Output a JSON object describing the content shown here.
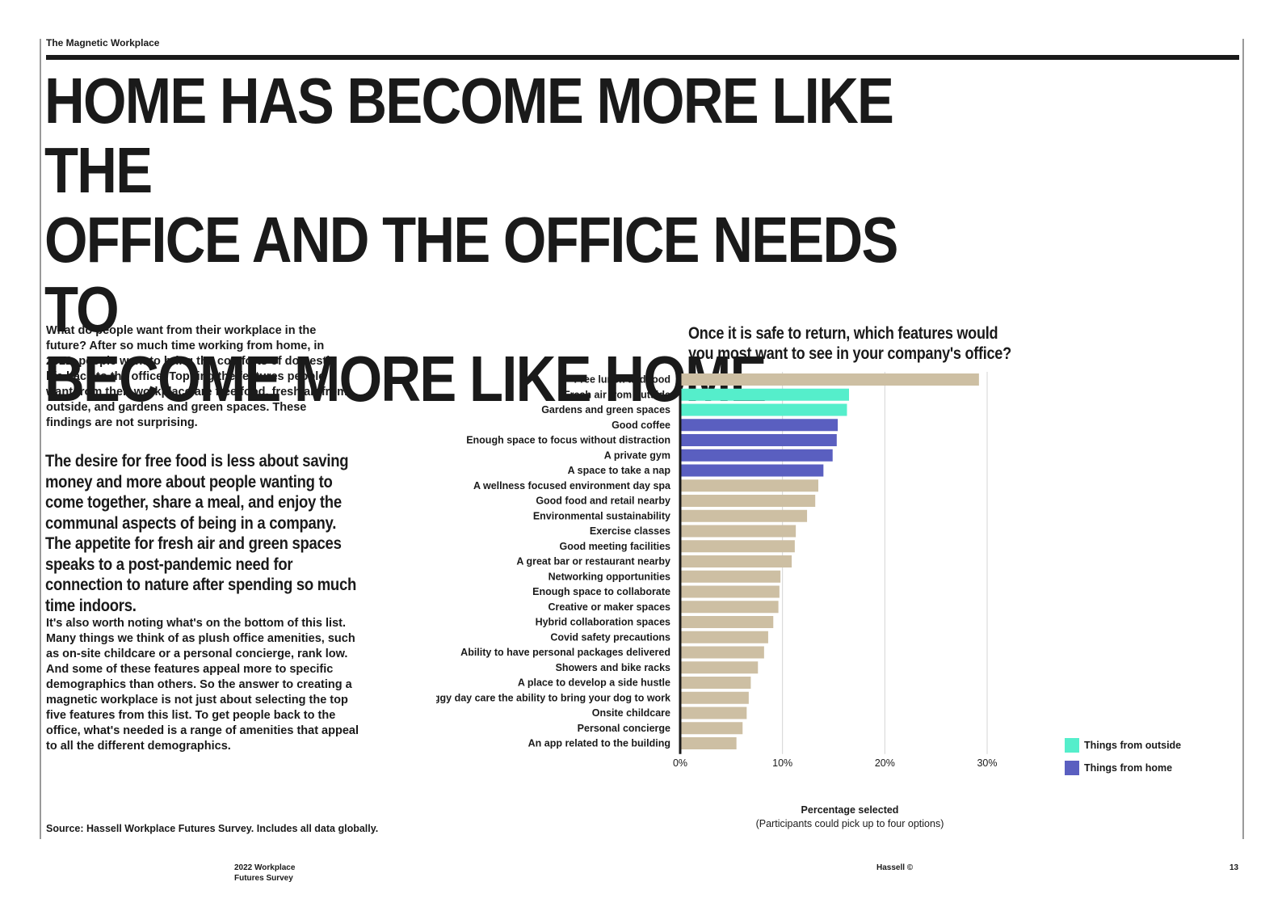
{
  "header": {
    "label": "The Magnetic Workplace"
  },
  "headline": "HOME HAS BECOME MORE LIKE THE\nOFFICE AND THE OFFICE NEEDS TO\nBECOME MORE LIKE HOME",
  "body": {
    "intro": "What do people want from their workplace in the future? After so much time working from home, in 2022, people want to bring the comforts of domestic life back to the office. Topping the features people want from their workplace are free food, fresh air from outside, and gardens and green spaces. These findings are not surprising.",
    "pullquote": "The desire for free food is less about saving money and more about people wanting to come together, share a meal, and enjoy the communal aspects of being in a company. The appetite for fresh air and green spaces speaks to a post-pandemic need for connection to nature after spending so much time indoors.",
    "closing": "It's also worth noting what's on the bottom of this list. Many things we think of as plush office amenities, such as on-site childcare or a personal concierge, rank low. And some of these features appeal more to specific demographics than others. So the answer to creating a magnetic workplace is not just about selecting the top five features from this list. To get people back to the office, what's needed is a range of amenities that appeal to all the different demographics.",
    "source": "Source: Hassell Workplace Futures Survey. Includes all data globally."
  },
  "chart_data": {
    "type": "bar",
    "orientation": "horizontal",
    "title": "Once it is safe to return, which features would you most want to see in your company's office?",
    "xlabel": "Percentage selected",
    "xlabel_note": "(Participants could pick up to four options)",
    "xlim": [
      0,
      30
    ],
    "xticks": [
      "0%",
      "10%",
      "20%",
      "30%"
    ],
    "grid": true,
    "legend_position": "bottom-right",
    "categories": [
      "Free lunch and food",
      "Fresh air from outside",
      "Gardens and green spaces",
      "Good coffee",
      "Enough space to focus without distraction",
      "A private gym",
      "A space to take a nap",
      "A wellness focused environment day spa",
      "Good food and retail nearby",
      "Environmental sustainability",
      "Exercise classes",
      "Good meeting facilities",
      "A great bar or restaurant nearby",
      "Networking opportunities",
      "Enough space to collaborate",
      "Creative or maker spaces",
      "Hybrid collaboration spaces",
      "Covid safety precautions",
      "Ability to have personal packages delivered",
      "Showers and bike racks",
      "A place to develop a side hustle",
      "Doggy day care the ability to bring your dog to work",
      "Onsite childcare",
      "Personal concierge",
      "An app related to the building"
    ],
    "values": [
      29.2,
      16.5,
      16.3,
      15.4,
      15.3,
      14.9,
      14.0,
      13.5,
      13.2,
      12.4,
      11.3,
      11.2,
      10.9,
      9.8,
      9.7,
      9.6,
      9.1,
      8.6,
      8.2,
      7.6,
      6.9,
      6.7,
      6.5,
      6.1,
      5.5
    ],
    "groups": [
      "other",
      "outside",
      "outside",
      "home",
      "home",
      "home",
      "home",
      "other",
      "other",
      "other",
      "other",
      "other",
      "other",
      "other",
      "other",
      "other",
      "other",
      "other",
      "other",
      "other",
      "other",
      "other",
      "other",
      "other",
      "other"
    ],
    "group_colors": {
      "outside": "#55EECB",
      "home": "#5A5FC0",
      "other": "#CDBFA3"
    },
    "legend": [
      {
        "label": "Things from outside",
        "color": "#55EECB"
      },
      {
        "label": "Things from home",
        "color": "#5A5FC0"
      }
    ]
  },
  "footer": {
    "left": "2022 Workplace Futures Survey",
    "middle": "Hassell ©",
    "page": "13"
  }
}
